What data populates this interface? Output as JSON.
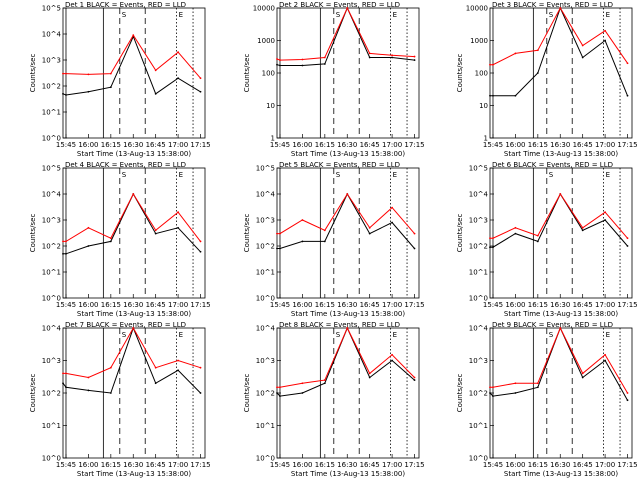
{
  "figure": {
    "xlabel": "Start Time (13-Aug-13 15:38:00)",
    "ylabel": "Counts/sec",
    "x_ticks": [
      "15:45",
      "16:00",
      "16:15",
      "16:30",
      "16:45",
      "17:00",
      "17:15"
    ],
    "legend_text": "BLACK = Events, RED = LLD",
    "markers": {
      "s": "S",
      "e": "E"
    },
    "colors": {
      "events": "#000000",
      "lld": "#ff0000",
      "axes": "#000000"
    }
  },
  "chart_data": [
    {
      "type": "line",
      "title": "Det 1",
      "x": [
        "15:43",
        "15:45",
        "16:00",
        "16:15",
        "16:30",
        "16:45",
        "17:00",
        "17:15"
      ],
      "xlim": [
        "15:43",
        "17:18"
      ],
      "ylim": [
        1,
        100000
      ],
      "yscale": "log",
      "y_ticks": [
        "10^0",
        "10^1",
        "10^2",
        "10^3",
        "10^4",
        "10^5"
      ],
      "series": [
        {
          "name": "Events",
          "color": "#000000",
          "values": [
            50,
            45,
            60,
            90,
            8000,
            50,
            200,
            60
          ]
        },
        {
          "name": "LLD",
          "color": "#ff0000",
          "values": [
            300,
            300,
            280,
            300,
            9000,
            400,
            2000,
            200
          ]
        }
      ],
      "vlines": {
        "solid": [
          "15:45",
          "16:10"
        ],
        "dashed": [
          "16:21",
          "16:38"
        ],
        "dotted": [
          "16:59",
          "17:10"
        ]
      }
    },
    {
      "type": "line",
      "title": "Det 2",
      "x": [
        "15:43",
        "15:45",
        "16:00",
        "16:15",
        "16:30",
        "16:45",
        "17:00",
        "17:15"
      ],
      "xlim": [
        "15:43",
        "17:18"
      ],
      "ylim": [
        1,
        10000
      ],
      "yscale": "log",
      "y_ticks": [
        "1",
        "10",
        "100",
        "1000",
        "10000"
      ],
      "series": [
        {
          "name": "Events",
          "color": "#000000",
          "values": [
            180,
            170,
            170,
            190,
            10000,
            300,
            300,
            250
          ]
        },
        {
          "name": "LLD",
          "color": "#ff0000",
          "values": [
            270,
            250,
            260,
            300,
            10000,
            400,
            350,
            320
          ]
        }
      ],
      "vlines": {
        "solid": [
          "15:45",
          "16:12"
        ],
        "dashed": [
          "16:21",
          "16:38"
        ],
        "dotted": [
          "16:59",
          "17:10"
        ]
      }
    },
    {
      "type": "line",
      "title": "Det 3",
      "x": [
        "15:43",
        "15:45",
        "16:00",
        "16:15",
        "16:30",
        "16:45",
        "17:00",
        "17:15"
      ],
      "xlim": [
        "15:43",
        "17:18"
      ],
      "ylim": [
        1,
        10000
      ],
      "yscale": "log",
      "y_ticks": [
        "1",
        "10",
        "100",
        "1000",
        "10000"
      ],
      "series": [
        {
          "name": "Events",
          "color": "#000000",
          "values": [
            20,
            20,
            20,
            100,
            10000,
            300,
            1000,
            20
          ]
        },
        {
          "name": "LLD",
          "color": "#ff0000",
          "values": [
            180,
            180,
            400,
            500,
            10000,
            700,
            2000,
            200
          ]
        }
      ],
      "vlines": {
        "solid": [
          "15:45",
          "16:12"
        ],
        "dashed": [
          "16:21",
          "16:38"
        ],
        "dotted": [
          "16:59",
          "17:10"
        ]
      }
    },
    {
      "type": "line",
      "title": "Det 4",
      "x": [
        "15:43",
        "15:45",
        "16:00",
        "16:15",
        "16:30",
        "16:45",
        "17:00",
        "17:15"
      ],
      "xlim": [
        "15:43",
        "17:18"
      ],
      "ylim": [
        1,
        100000
      ],
      "yscale": "log",
      "y_ticks": [
        "10^0",
        "10^1",
        "10^2",
        "10^3",
        "10^4",
        "10^5"
      ],
      "series": [
        {
          "name": "Events",
          "color": "#000000",
          "values": [
            50,
            50,
            100,
            150,
            10000,
            300,
            500,
            60
          ]
        },
        {
          "name": "LLD",
          "color": "#ff0000",
          "values": [
            150,
            150,
            500,
            200,
            10000,
            400,
            2000,
            150
          ]
        }
      ],
      "vlines": {
        "solid": [
          "15:45",
          "16:10"
        ],
        "dashed": [
          "16:21",
          "16:38"
        ],
        "dotted": [
          "16:59",
          "17:10"
        ]
      }
    },
    {
      "type": "line",
      "title": "Det 5",
      "x": [
        "15:43",
        "15:45",
        "16:00",
        "16:15",
        "16:30",
        "16:45",
        "17:00",
        "17:15"
      ],
      "xlim": [
        "15:43",
        "17:18"
      ],
      "ylim": [
        1,
        100000
      ],
      "yscale": "log",
      "y_ticks": [
        "10^0",
        "10^1",
        "10^2",
        "10^3",
        "10^4",
        "10^5"
      ],
      "series": [
        {
          "name": "Events",
          "color": "#000000",
          "values": [
            80,
            80,
            150,
            150,
            10000,
            300,
            800,
            80
          ]
        },
        {
          "name": "LLD",
          "color": "#ff0000",
          "values": [
            300,
            300,
            1000,
            400,
            10000,
            500,
            3000,
            300
          ]
        }
      ],
      "vlines": {
        "solid": [
          "15:45",
          "16:12"
        ],
        "dashed": [
          "16:21",
          "16:38"
        ],
        "dotted": [
          "16:59",
          "17:10"
        ]
      }
    },
    {
      "type": "line",
      "title": "Det 6",
      "x": [
        "15:43",
        "15:45",
        "16:00",
        "16:15",
        "16:30",
        "16:45",
        "17:00",
        "17:15"
      ],
      "xlim": [
        "15:43",
        "17:18"
      ],
      "ylim": [
        1,
        100000
      ],
      "yscale": "log",
      "y_ticks": [
        "10^0",
        "10^1",
        "10^2",
        "10^3",
        "10^4",
        "10^5"
      ],
      "series": [
        {
          "name": "Events",
          "color": "#000000",
          "values": [
            90,
            90,
            300,
            150,
            10000,
            400,
            1000,
            100
          ]
        },
        {
          "name": "LLD",
          "color": "#ff0000",
          "values": [
            200,
            200,
            500,
            250,
            10000,
            500,
            2000,
            200
          ]
        }
      ],
      "vlines": {
        "solid": [
          "15:45",
          "16:12"
        ],
        "dashed": [
          "16:21",
          "16:38"
        ],
        "dotted": [
          "16:59",
          "17:10"
        ]
      }
    },
    {
      "type": "line",
      "title": "Det 7",
      "x": [
        "15:43",
        "15:45",
        "16:00",
        "16:15",
        "16:30",
        "16:45",
        "17:00",
        "17:15"
      ],
      "xlim": [
        "15:43",
        "17:18"
      ],
      "ylim": [
        1,
        10000
      ],
      "yscale": "log",
      "y_ticks": [
        "10^0",
        "10^1",
        "10^2",
        "10^3",
        "10^4"
      ],
      "series": [
        {
          "name": "Events",
          "color": "#000000",
          "values": [
            200,
            150,
            120,
            100,
            10000,
            200,
            500,
            100
          ]
        },
        {
          "name": "LLD",
          "color": "#ff0000",
          "values": [
            400,
            400,
            300,
            600,
            10000,
            600,
            1000,
            600
          ]
        }
      ],
      "vlines": {
        "solid": [
          "15:45",
          "16:10"
        ],
        "dashed": [
          "16:21",
          "16:38"
        ],
        "dotted": [
          "16:59",
          "17:10"
        ]
      }
    },
    {
      "type": "line",
      "title": "Det 8",
      "x": [
        "15:43",
        "15:45",
        "16:00",
        "16:15",
        "16:30",
        "16:45",
        "17:00",
        "17:15"
      ],
      "xlim": [
        "15:43",
        "17:18"
      ],
      "ylim": [
        1,
        10000
      ],
      "yscale": "log",
      "y_ticks": [
        "10^0",
        "10^1",
        "10^2",
        "10^3",
        "10^4"
      ],
      "series": [
        {
          "name": "Events",
          "color": "#000000",
          "values": [
            100,
            80,
            100,
            200,
            10000,
            300,
            1000,
            250
          ]
        },
        {
          "name": "LLD",
          "color": "#ff0000",
          "values": [
            150,
            150,
            200,
            250,
            10000,
            400,
            1500,
            300
          ]
        }
      ],
      "vlines": {
        "solid": [
          "15:45",
          "16:12"
        ],
        "dashed": [
          "16:21",
          "16:38"
        ],
        "dotted": [
          "16:59",
          "17:10"
        ]
      }
    },
    {
      "type": "line",
      "title": "Det 9",
      "x": [
        "15:43",
        "15:45",
        "16:00",
        "16:15",
        "16:30",
        "16:45",
        "17:00",
        "17:15"
      ],
      "xlim": [
        "15:43",
        "17:18"
      ],
      "ylim": [
        1,
        10000
      ],
      "yscale": "log",
      "y_ticks": [
        "10^0",
        "10^1",
        "10^2",
        "10^3",
        "10^4"
      ],
      "series": [
        {
          "name": "Events",
          "color": "#000000",
          "values": [
            100,
            80,
            100,
            150,
            10000,
            300,
            1000,
            60
          ]
        },
        {
          "name": "LLD",
          "color": "#ff0000",
          "values": [
            150,
            150,
            200,
            200,
            10000,
            400,
            1500,
            100
          ]
        }
      ],
      "vlines": {
        "solid": [
          "15:45",
          "16:12"
        ],
        "dashed": [
          "16:21",
          "16:38"
        ],
        "dotted": [
          "16:59",
          "17:10"
        ]
      }
    }
  ]
}
